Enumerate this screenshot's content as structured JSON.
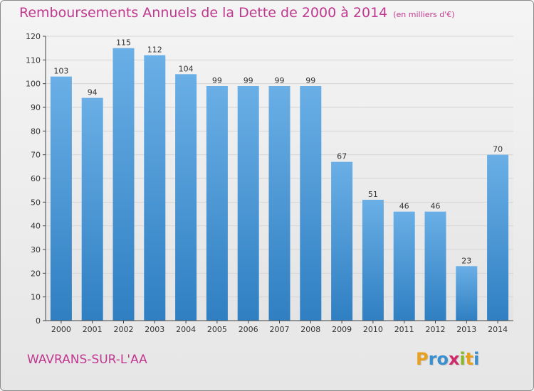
{
  "header": {
    "title": "Remboursements Annuels de la Dette de 2000 à 2014",
    "subtitle": "(en milliers d'€)"
  },
  "footer": {
    "commune": "WAVRANS-SUR-L'AA",
    "logo_letters": [
      "P",
      "r",
      "o",
      "x",
      "i",
      "t",
      "i"
    ],
    "logo_colors": [
      "#e8a020",
      "#3a8fd0",
      "#3a8fd0",
      "#d02a6a",
      "#8ab82a",
      "#e8a020",
      "#3a8fd0"
    ]
  },
  "colors": {
    "bar_light": "#6aafe6",
    "bar_dark": "#2f7fc2",
    "grid": "#d6d6d6",
    "axis": "#444444"
  },
  "chart_data": {
    "type": "bar",
    "title": "Remboursements Annuels de la Dette de 2000 à 2014",
    "xlabel": "",
    "ylabel": "",
    "ylim": [
      0,
      120
    ],
    "yticks": [
      0,
      10,
      20,
      30,
      40,
      50,
      60,
      70,
      80,
      90,
      100,
      110,
      120
    ],
    "categories": [
      "2000",
      "2001",
      "2002",
      "2003",
      "2004",
      "2005",
      "2006",
      "2007",
      "2008",
      "2009",
      "2010",
      "2011",
      "2012",
      "2013",
      "2014"
    ],
    "values": [
      103,
      94,
      115,
      112,
      104,
      99,
      99,
      99,
      99,
      67,
      51,
      46,
      46,
      23,
      70
    ],
    "grid": true
  }
}
